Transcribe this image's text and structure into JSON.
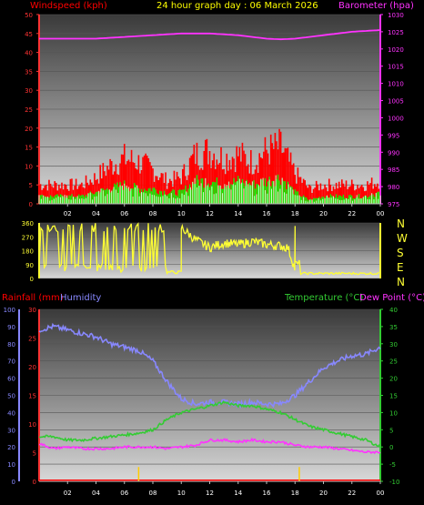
{
  "colors": {
    "background": "#000000",
    "wind_speed": "#ff0000",
    "wind_gust_area": "#00ff00",
    "wind_avg": "#ccffcc",
    "barometer": "#ff33ff",
    "direction": "#ffff33",
    "rainfall": "#ff0000",
    "humidity": "#8888ff",
    "temperature": "#33cc33",
    "dewpoint": "#ff33ff",
    "title": "#ffff00",
    "tick_label": "#ffffff"
  },
  "header": {
    "title": "24 hour graph day : 06 March 2026",
    "windspeed_label": "Windspeed (kph)",
    "barometer_label": "Barometer (hpa)"
  },
  "mid": {
    "compass": [
      "N",
      "W",
      "S",
      "E",
      "N"
    ]
  },
  "bottom_header": {
    "rainfall_label": "Rainfall (mm)",
    "humidity_label": "Humidity",
    "temperature_label": "Temperature (°C)",
    "dewpoint_label": "Dew Point (°C)"
  },
  "chart_data": [
    {
      "type": "line",
      "name": "wind-baro",
      "x_ticks": [
        "02",
        "04",
        "06",
        "08",
        "10",
        "12",
        "14",
        "16",
        "18",
        "20",
        "22",
        "00"
      ],
      "y_left": {
        "label": "Windspeed (kph)",
        "ticks": [
          0,
          5,
          10,
          15,
          20,
          25,
          30,
          35,
          40,
          45,
          50
        ],
        "ylim": [
          0,
          50
        ]
      },
      "y_right": {
        "label": "Barometer (hpa)",
        "ticks": [
          975,
          980,
          985,
          990,
          995,
          1000,
          1005,
          1010,
          1015,
          1020,
          1025,
          1030
        ],
        "ylim": [
          975,
          1030
        ]
      },
      "series": [
        {
          "name": "Windspeed (kph)",
          "axis": "left",
          "x": [
            0,
            1,
            2,
            3,
            4,
            5,
            6,
            7,
            8,
            9,
            10,
            11,
            12,
            13,
            14,
            15,
            16,
            17,
            18,
            19,
            20,
            21,
            22,
            23,
            24
          ],
          "values": [
            5,
            5,
            5,
            5,
            7,
            10,
            12,
            11,
            9,
            6,
            7,
            13,
            14,
            12,
            13,
            11,
            14,
            15,
            8,
            4,
            5,
            5,
            5,
            5,
            6
          ]
        },
        {
          "name": "Wind average",
          "axis": "left",
          "x": [
            0,
            1,
            2,
            3,
            4,
            5,
            6,
            7,
            8,
            9,
            10,
            11,
            12,
            13,
            14,
            15,
            16,
            17,
            18,
            19,
            20,
            21,
            22,
            23,
            24
          ],
          "values": [
            2,
            2,
            2,
            2,
            3,
            4,
            5,
            4,
            4,
            3,
            3,
            6,
            6,
            5,
            6,
            5,
            6,
            7,
            3,
            1,
            2,
            2,
            2,
            2,
            3
          ]
        },
        {
          "name": "Barometer (hpa)",
          "axis": "right",
          "x": [
            0,
            2,
            4,
            6,
            8,
            10,
            12,
            14,
            16,
            17,
            18,
            20,
            22,
            24
          ],
          "values": [
            1023.0,
            1023.0,
            1023.0,
            1023.5,
            1024.0,
            1024.5,
            1024.5,
            1024.0,
            1023.0,
            1022.8,
            1023.0,
            1024.0,
            1025.0,
            1025.5
          ]
        }
      ]
    },
    {
      "type": "scatter",
      "name": "wind-direction",
      "y_ticks": [
        0,
        90,
        180,
        270,
        360
      ],
      "ylim": [
        0,
        360
      ],
      "series": [
        {
          "name": "Direction",
          "x": [
            0,
            1,
            2,
            3,
            4,
            5,
            6,
            7,
            8,
            9,
            9.5,
            10,
            11,
            12,
            13,
            14,
            15,
            16,
            17,
            17.5,
            18,
            19,
            20,
            21,
            22,
            23,
            24
          ],
          "values": [
            120,
            300,
            80,
            320,
            90,
            300,
            60,
            310,
            40,
            40,
            60,
            330,
            250,
            200,
            230,
            220,
            240,
            220,
            210,
            200,
            60,
            30,
            30,
            30,
            30,
            30,
            30
          ]
        }
      ]
    },
    {
      "type": "line",
      "name": "rain-humidity-temp",
      "y_rain": {
        "label": "Rainfall (mm)",
        "ticks": [
          0,
          5,
          10,
          15,
          20,
          25,
          30
        ],
        "ylim": [
          0,
          30
        ]
      },
      "y_humidity": {
        "label": "Humidity",
        "ticks": [
          0,
          10,
          20,
          30,
          40,
          50,
          60,
          70,
          80,
          90,
          100
        ],
        "ylim": [
          0,
          100
        ]
      },
      "y_temp": {
        "label": "Temperature (°C)",
        "ticks": [
          -10,
          -5,
          0,
          5,
          10,
          15,
          20,
          25,
          30,
          35,
          40
        ],
        "ylim": [
          -10,
          40
        ]
      },
      "series": [
        {
          "name": "Humidity",
          "axis": "humidity",
          "x": [
            0,
            1,
            2,
            3,
            4,
            5,
            6,
            7,
            8,
            9,
            10,
            11,
            12,
            13,
            14,
            15,
            16,
            17,
            18,
            19,
            20,
            21,
            22,
            23,
            24
          ],
          "values": [
            88,
            90,
            88,
            86,
            84,
            80,
            78,
            76,
            70,
            58,
            48,
            45,
            46,
            46,
            45,
            46,
            45,
            45,
            50,
            58,
            66,
            70,
            73,
            74,
            78
          ]
        },
        {
          "name": "Temperature (°C)",
          "axis": "temp",
          "x": [
            0,
            1,
            2,
            3,
            4,
            5,
            6,
            7,
            8,
            9,
            10,
            11,
            12,
            13,
            14,
            15,
            16,
            17,
            18,
            19,
            20,
            21,
            22,
            23,
            24
          ],
          "values": [
            3,
            3,
            2,
            2,
            2.5,
            3,
            3.5,
            4,
            5,
            8,
            10,
            11,
            12,
            13,
            12,
            12,
            11,
            10,
            8,
            6,
            5,
            4,
            3,
            2,
            0
          ]
        },
        {
          "name": "Dew Point (°C)",
          "axis": "temp",
          "x": [
            0,
            1,
            2,
            3,
            4,
            5,
            6,
            7,
            8,
            9,
            10,
            11,
            12,
            13,
            14,
            15,
            16,
            17,
            18,
            19,
            20,
            21,
            22,
            23,
            24
          ],
          "values": [
            1,
            -0.5,
            0,
            -0.5,
            -0.5,
            -0.5,
            0,
            0,
            0,
            -0.5,
            0,
            0.5,
            2,
            2,
            1.5,
            2,
            1.5,
            1.5,
            0.5,
            0,
            0,
            -0.5,
            -1,
            -1.5,
            -1.5
          ]
        },
        {
          "name": "Rainfall (mm)",
          "axis": "rain",
          "x": [
            7.0,
            18.3
          ],
          "values": [
            2.5,
            2.5
          ]
        }
      ]
    }
  ]
}
